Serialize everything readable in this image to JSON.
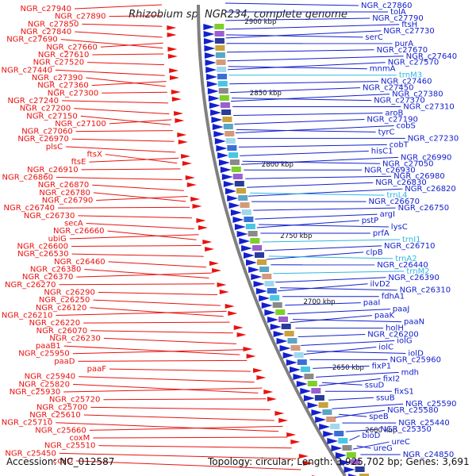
{
  "title": "Rhizobium sp. NGR234, complete genome",
  "accession": "Accession: NC_012587",
  "topology": "Topology: circular; Length: 3,925,702 bp; Genes: 3,691",
  "colors": {
    "left_strand": "#e8120e",
    "right_strand": "#1320cc",
    "rna": "#2eb8e0",
    "backbone": "#808080",
    "tick": "#1e8a1e"
  },
  "scale_ticks": [
    "2900 kbp",
    "2850 kbp",
    "2800 kbp",
    "2750 kbp",
    "2700 kbp",
    "2650 kbp",
    "2600 kbp"
  ],
  "left_labels": [
    "NGR_c27940",
    "NGR_c27890",
    "NGR_c27850",
    "NGR_c27840",
    "NGR_c27690",
    "NGR_c27660",
    "NGR_c27610",
    "NGR_c27520",
    "NGR_c27440",
    "NGR_c27390",
    "NGR_c27360",
    "NGR_c27300",
    "NGR_c27240",
    "NGR_c27200",
    "NGR_c27150",
    "NGR_c27100",
    "NGR_c27060",
    "NGR_c26970",
    "plsC",
    "ftsX",
    "ftsE",
    "NGR_c26910",
    "NGR_c26860",
    "NGR_c26870",
    "NGR_c26780",
    "NGR_c26790",
    "NGR_c26740",
    "NGR_c26730",
    "secA",
    "NGR_c26660",
    "ubiG",
    "NGR_c26600",
    "NGR_c26530",
    "NGR_c26460",
    "NGR_c26380",
    "NGR_c26370",
    "NGR_c26270",
    "NGR_c26290",
    "NGR_c26250",
    "NGR_c26120",
    "NGR_c26210",
    "NGR_c26220",
    "NGR_c26070",
    "NGR_c26230",
    "paaB1",
    "NGR_c25950",
    "paaD",
    "paaF",
    "NGR_c25940",
    "NGR_c25820",
    "NGR_c25930",
    "NGR_c25720",
    "NGR_c25700",
    "NGR_c25610",
    "NGR_c25710",
    "NGR_c25660",
    "coxM",
    "NGR_c25510",
    "NGR_c25450",
    "coxO"
  ],
  "right_labels": [
    "NGR_c27860",
    "tolA",
    "NGR_c27790",
    "ftsH",
    "NGR_c27730",
    "serC",
    "purA",
    "NGR_c27670",
    "NGR_c27640",
    "NGR_c27570",
    "mnmA",
    "trnM3",
    "NGR_c27460",
    "NGR_c27450",
    "NGR_c27380",
    "NGR_c27370",
    "NGR_c27310",
    "aroB",
    "NGR_c27190",
    "cobS",
    "tyrC",
    "NGR_c27230",
    "cobT",
    "hisC1",
    "NGR_c26990",
    "NGR_c27050",
    "NGR_c26930",
    "NGR_c26980",
    "NGR_c26830",
    "NGR_c26820",
    "trnL4",
    "NGR_c26670",
    "NGR_c26750",
    "argI",
    "pstP",
    "lysC",
    "prfA",
    "trnI1",
    "NGR_c26710",
    "clpB",
    "trnA2",
    "NGR_c26440",
    "trnM2",
    "NGR_c26390",
    "ilvD2",
    "NGR_c26310",
    "fdhA1",
    "paaI",
    "paaJ",
    "paaK",
    "paaN",
    "holH",
    "NGR_c26200",
    "iolG",
    "iolC",
    "iolD",
    "NGR_c25960",
    "fixP1",
    "mdh",
    "fixI2",
    "ssuD",
    "fixS1",
    "ssuB",
    "NGR_c25590",
    "NGR_c25580",
    "speB",
    "NGR_c25440",
    "NGR_c25350",
    "bioD",
    "ureC",
    "ureG",
    "NGR_c24850"
  ],
  "rna_names": [
    "trnM3",
    "trnL4",
    "trnI1",
    "trnA2",
    "trnM2"
  ]
}
